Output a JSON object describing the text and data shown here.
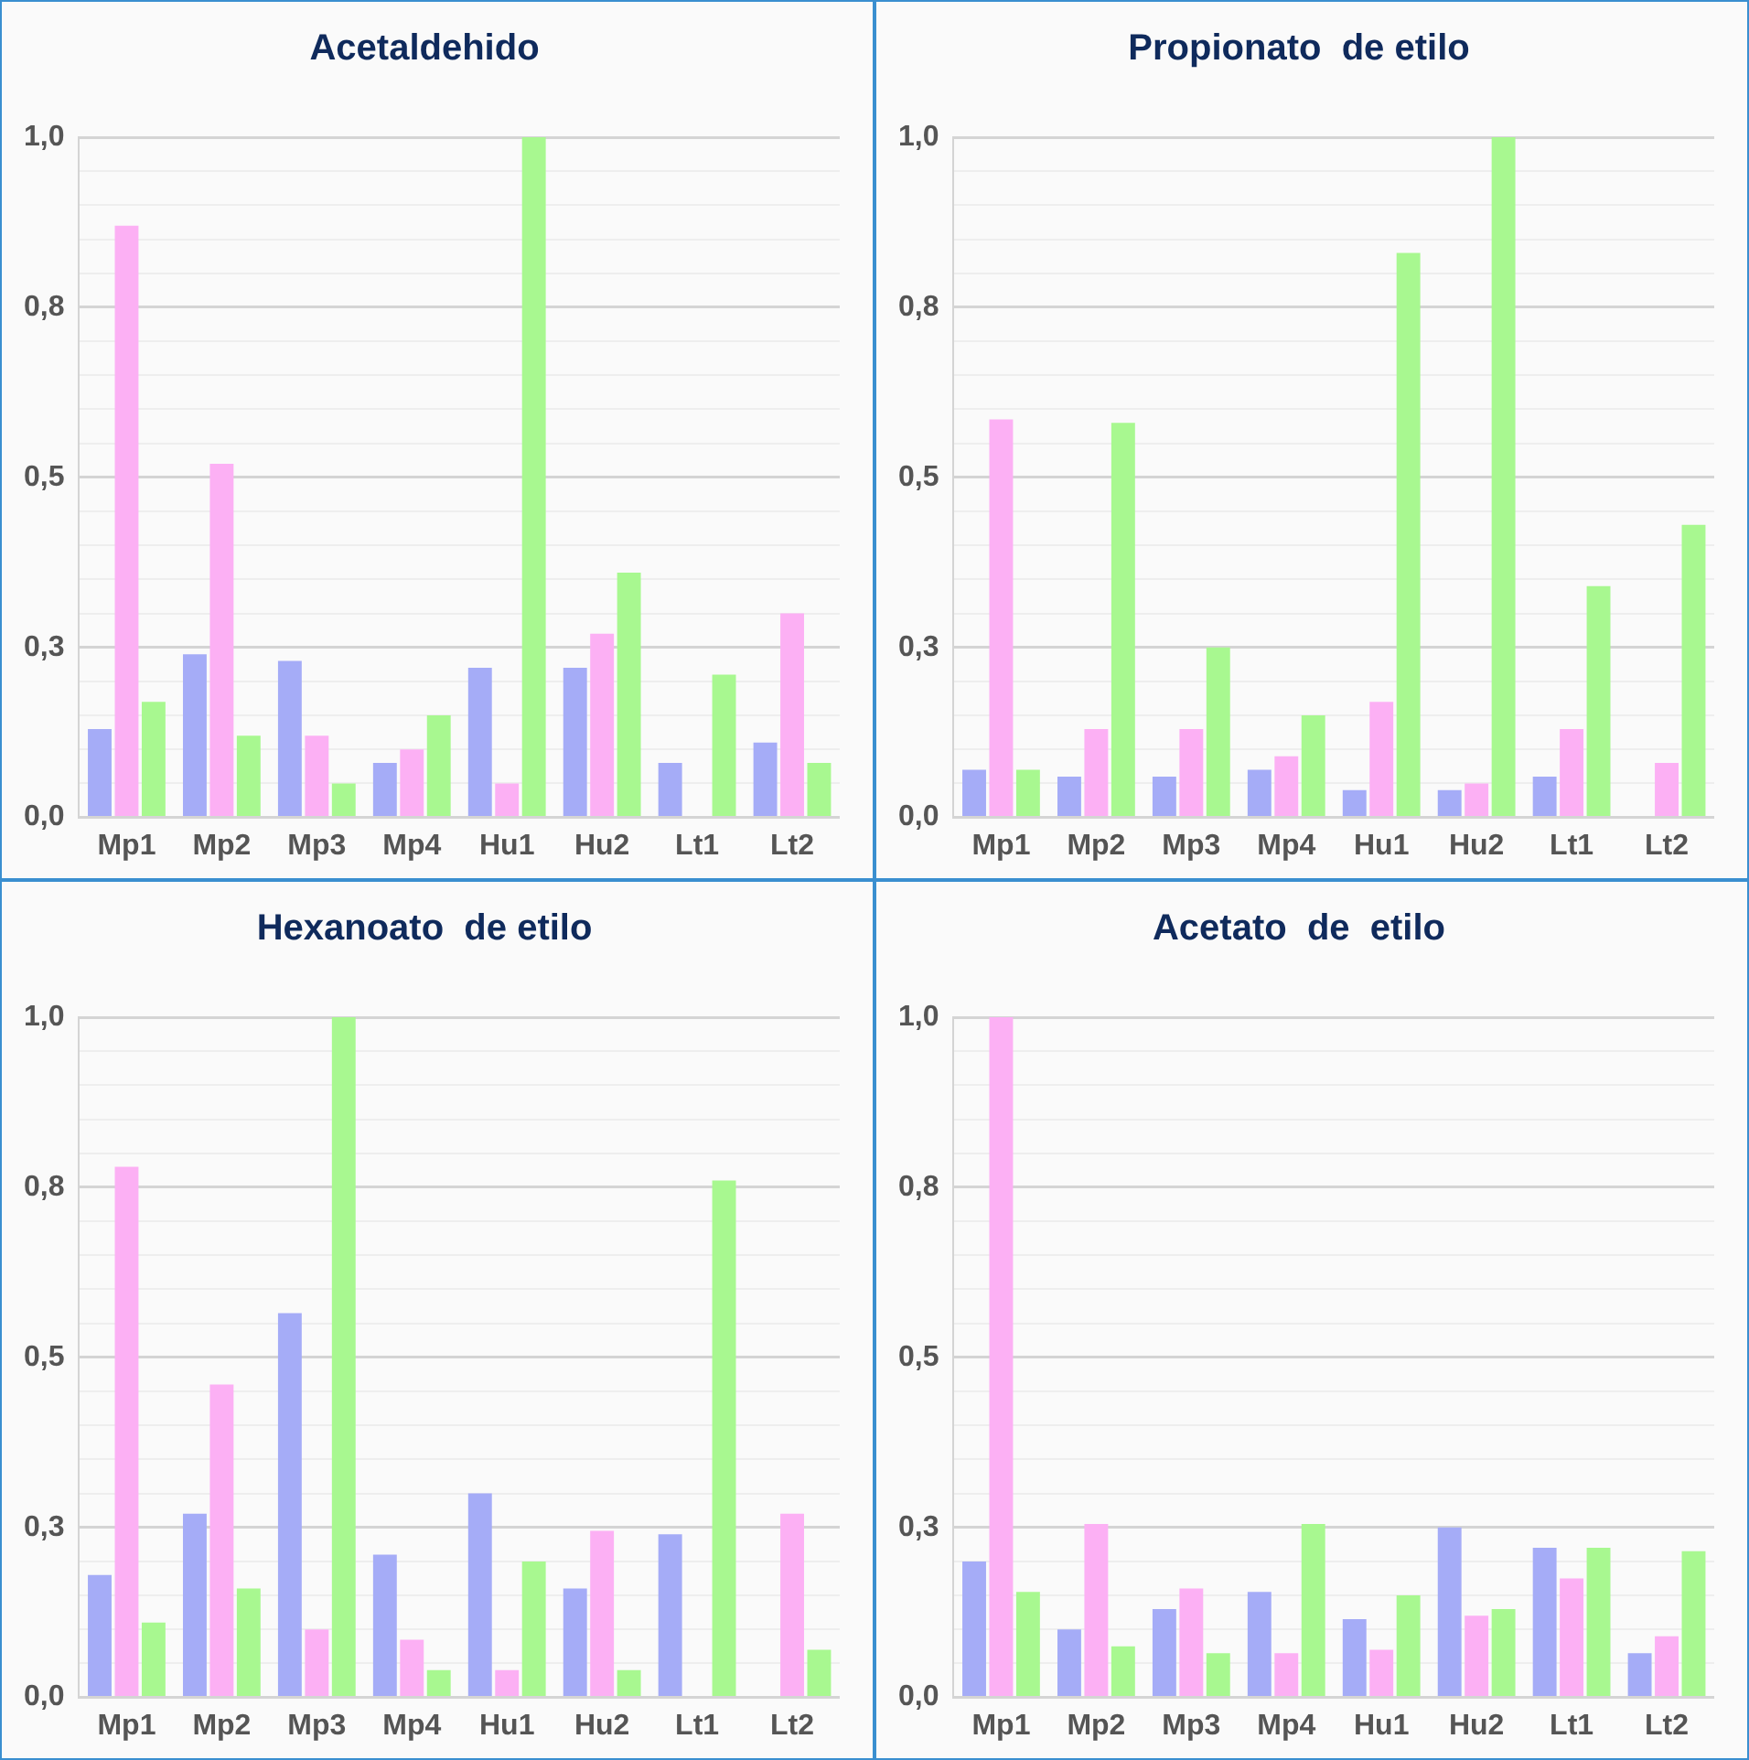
{
  "chart_data": [
    {
      "type": "bar",
      "title": "Acetaldehido",
      "categories": [
        "Mp1",
        "Mp2",
        "Mp3",
        "Mp4",
        "Hu1",
        "Hu2",
        "Lt1",
        "Lt2"
      ],
      "series": [
        {
          "color": "#a5acf7",
          "values": [
            0.13,
            0.24,
            0.23,
            0.08,
            0.22,
            0.22,
            0.08,
            0.11
          ]
        },
        {
          "color": "#fcb0f4",
          "values": [
            0.87,
            0.52,
            0.12,
            0.1,
            0.05,
            0.27,
            null,
            0.3
          ]
        },
        {
          "color": "#a8f890",
          "values": [
            0.17,
            0.12,
            0.05,
            0.15,
            1.0,
            0.36,
            0.21,
            0.08
          ]
        }
      ],
      "ylim": [
        0,
        1
      ],
      "yticks": [
        {
          "value": 0,
          "label": "0,0"
        },
        {
          "value": 0.05,
          "label": null
        },
        {
          "value": 0.1,
          "label": null
        },
        {
          "value": 0.15,
          "label": null
        },
        {
          "value": 0.2,
          "label": null
        },
        {
          "value": 0.25,
          "label": "0,3"
        },
        {
          "value": 0.3,
          "label": null
        },
        {
          "value": 0.35,
          "label": null
        },
        {
          "value": 0.4,
          "label": null
        },
        {
          "value": 0.45,
          "label": null
        },
        {
          "value": 0.5,
          "label": "0,5"
        },
        {
          "value": 0.55,
          "label": null
        },
        {
          "value": 0.6,
          "label": null
        },
        {
          "value": 0.65,
          "label": null
        },
        {
          "value": 0.7,
          "label": null
        },
        {
          "value": 0.75,
          "label": "0,8"
        },
        {
          "value": 0.8,
          "label": null
        },
        {
          "value": 0.85,
          "label": null
        },
        {
          "value": 0.9,
          "label": null
        },
        {
          "value": 0.95,
          "label": null
        },
        {
          "value": 1,
          "label": "1,0"
        }
      ],
      "grid": "y",
      "legend": false
    },
    {
      "type": "bar",
      "title": "Propionato  de etilo",
      "categories": [
        "Mp1",
        "Mp2",
        "Mp3",
        "Mp4",
        "Hu1",
        "Hu2",
        "Lt1",
        "Lt2"
      ],
      "series": [
        {
          "color": "#a5acf7",
          "values": [
            0.07,
            0.06,
            0.06,
            0.07,
            0.04,
            0.04,
            0.06,
            null
          ]
        },
        {
          "color": "#fcb0f4",
          "values": [
            0.585,
            0.13,
            0.13,
            0.09,
            0.17,
            0.05,
            0.13,
            0.08
          ]
        },
        {
          "color": "#a8f890",
          "values": [
            0.07,
            0.58,
            0.25,
            0.15,
            0.83,
            1.0,
            0.34,
            0.43
          ]
        }
      ],
      "ylim": [
        0,
        1
      ],
      "yticks": [
        {
          "value": 0,
          "label": "0,0"
        },
        {
          "value": 0.05,
          "label": null
        },
        {
          "value": 0.1,
          "label": null
        },
        {
          "value": 0.15,
          "label": null
        },
        {
          "value": 0.2,
          "label": null
        },
        {
          "value": 0.25,
          "label": "0,3"
        },
        {
          "value": 0.3,
          "label": null
        },
        {
          "value": 0.35,
          "label": null
        },
        {
          "value": 0.4,
          "label": null
        },
        {
          "value": 0.45,
          "label": null
        },
        {
          "value": 0.5,
          "label": "0,5"
        },
        {
          "value": 0.55,
          "label": null
        },
        {
          "value": 0.6,
          "label": null
        },
        {
          "value": 0.65,
          "label": null
        },
        {
          "value": 0.7,
          "label": null
        },
        {
          "value": 0.75,
          "label": "0,8"
        },
        {
          "value": 0.8,
          "label": null
        },
        {
          "value": 0.85,
          "label": null
        },
        {
          "value": 0.9,
          "label": null
        },
        {
          "value": 0.95,
          "label": null
        },
        {
          "value": 1,
          "label": "1,0"
        }
      ],
      "grid": "y",
      "legend": false
    },
    {
      "type": "bar",
      "title": "Hexanoato  de etilo",
      "categories": [
        "Mp1",
        "Mp2",
        "Mp3",
        "Mp4",
        "Hu1",
        "Hu2",
        "Lt1",
        "Lt2"
      ],
      "series": [
        {
          "color": "#a5acf7",
          "values": [
            0.18,
            0.27,
            0.565,
            0.21,
            0.3,
            0.16,
            0.24,
            null
          ]
        },
        {
          "color": "#fcb0f4",
          "values": [
            0.78,
            0.46,
            0.1,
            0.085,
            0.04,
            0.245,
            null,
            0.27
          ]
        },
        {
          "color": "#a8f890",
          "values": [
            0.11,
            0.16,
            1.0,
            0.04,
            0.2,
            0.04,
            0.76,
            0.07
          ]
        }
      ],
      "ylim": [
        0,
        1
      ],
      "yticks": [
        {
          "value": 0,
          "label": "0,0"
        },
        {
          "value": 0.05,
          "label": null
        },
        {
          "value": 0.1,
          "label": null
        },
        {
          "value": 0.15,
          "label": null
        },
        {
          "value": 0.2,
          "label": null
        },
        {
          "value": 0.25,
          "label": "0,3"
        },
        {
          "value": 0.3,
          "label": null
        },
        {
          "value": 0.35,
          "label": null
        },
        {
          "value": 0.4,
          "label": null
        },
        {
          "value": 0.45,
          "label": null
        },
        {
          "value": 0.5,
          "label": "0,5"
        },
        {
          "value": 0.55,
          "label": null
        },
        {
          "value": 0.6,
          "label": null
        },
        {
          "value": 0.65,
          "label": null
        },
        {
          "value": 0.7,
          "label": null
        },
        {
          "value": 0.75,
          "label": "0,8"
        },
        {
          "value": 0.8,
          "label": null
        },
        {
          "value": 0.85,
          "label": null
        },
        {
          "value": 0.9,
          "label": null
        },
        {
          "value": 0.95,
          "label": null
        },
        {
          "value": 1,
          "label": "1,0"
        }
      ],
      "grid": "y",
      "legend": false
    },
    {
      "type": "bar",
      "title": "Acetato  de  etilo",
      "categories": [
        "Mp1",
        "Mp2",
        "Mp3",
        "Mp4",
        "Hu1",
        "Hu2",
        "Lt1",
        "Lt2"
      ],
      "series": [
        {
          "color": "#a5acf7",
          "values": [
            0.2,
            0.1,
            0.13,
            0.155,
            0.115,
            0.25,
            0.22,
            0.065
          ]
        },
        {
          "color": "#fcb0f4",
          "values": [
            1.0,
            0.255,
            0.16,
            0.065,
            0.07,
            0.12,
            0.175,
            0.09
          ]
        },
        {
          "color": "#a8f890",
          "values": [
            0.155,
            0.075,
            0.065,
            0.255,
            0.15,
            0.13,
            0.22,
            0.215
          ]
        }
      ],
      "ylim": [
        0,
        1
      ],
      "yticks": [
        {
          "value": 0,
          "label": "0,0"
        },
        {
          "value": 0.05,
          "label": null
        },
        {
          "value": 0.1,
          "label": null
        },
        {
          "value": 0.15,
          "label": null
        },
        {
          "value": 0.2,
          "label": null
        },
        {
          "value": 0.25,
          "label": "0,3"
        },
        {
          "value": 0.3,
          "label": null
        },
        {
          "value": 0.35,
          "label": null
        },
        {
          "value": 0.4,
          "label": null
        },
        {
          "value": 0.45,
          "label": null
        },
        {
          "value": 0.5,
          "label": "0,5"
        },
        {
          "value": 0.55,
          "label": null
        },
        {
          "value": 0.6,
          "label": null
        },
        {
          "value": 0.65,
          "label": null
        },
        {
          "value": 0.7,
          "label": null
        },
        {
          "value": 0.75,
          "label": "0,8"
        },
        {
          "value": 0.8,
          "label": null
        },
        {
          "value": 0.85,
          "label": null
        },
        {
          "value": 0.9,
          "label": null
        },
        {
          "value": 0.95,
          "label": null
        },
        {
          "value": 1,
          "label": "1,0"
        }
      ],
      "grid": "y",
      "legend": false
    }
  ]
}
